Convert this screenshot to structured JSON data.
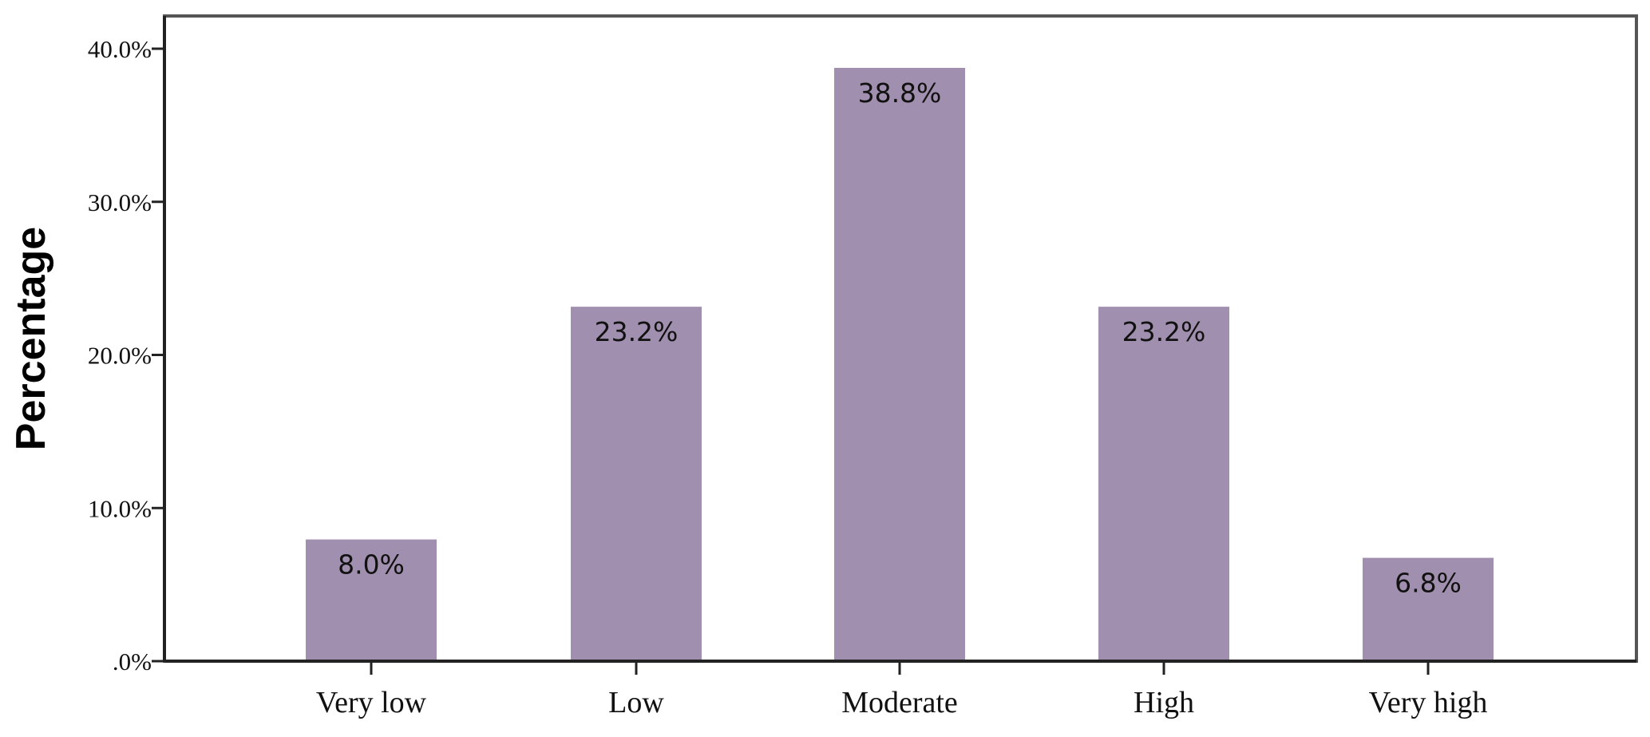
{
  "chart_data": {
    "type": "bar",
    "title": "",
    "xlabel": "",
    "ylabel": "Percentage",
    "categories": [
      "Very low",
      "Low",
      "Moderate",
      "High",
      "Very high"
    ],
    "values": [
      8.0,
      23.2,
      38.8,
      23.2,
      6.8
    ],
    "data_labels": [
      "8.0%",
      "23.2%",
      "38.8%",
      "23.2%",
      "6.8%"
    ],
    "y_ticks": [
      0,
      10,
      20,
      30,
      40
    ],
    "y_tick_labels": [
      ".0%",
      "10.0%",
      "20.0%",
      "30.0%",
      "40.0%"
    ],
    "ylim": [
      0,
      40
    ],
    "grid": false,
    "legend": "none",
    "bar_color": "#a08fae",
    "frame_color": "#555555"
  }
}
